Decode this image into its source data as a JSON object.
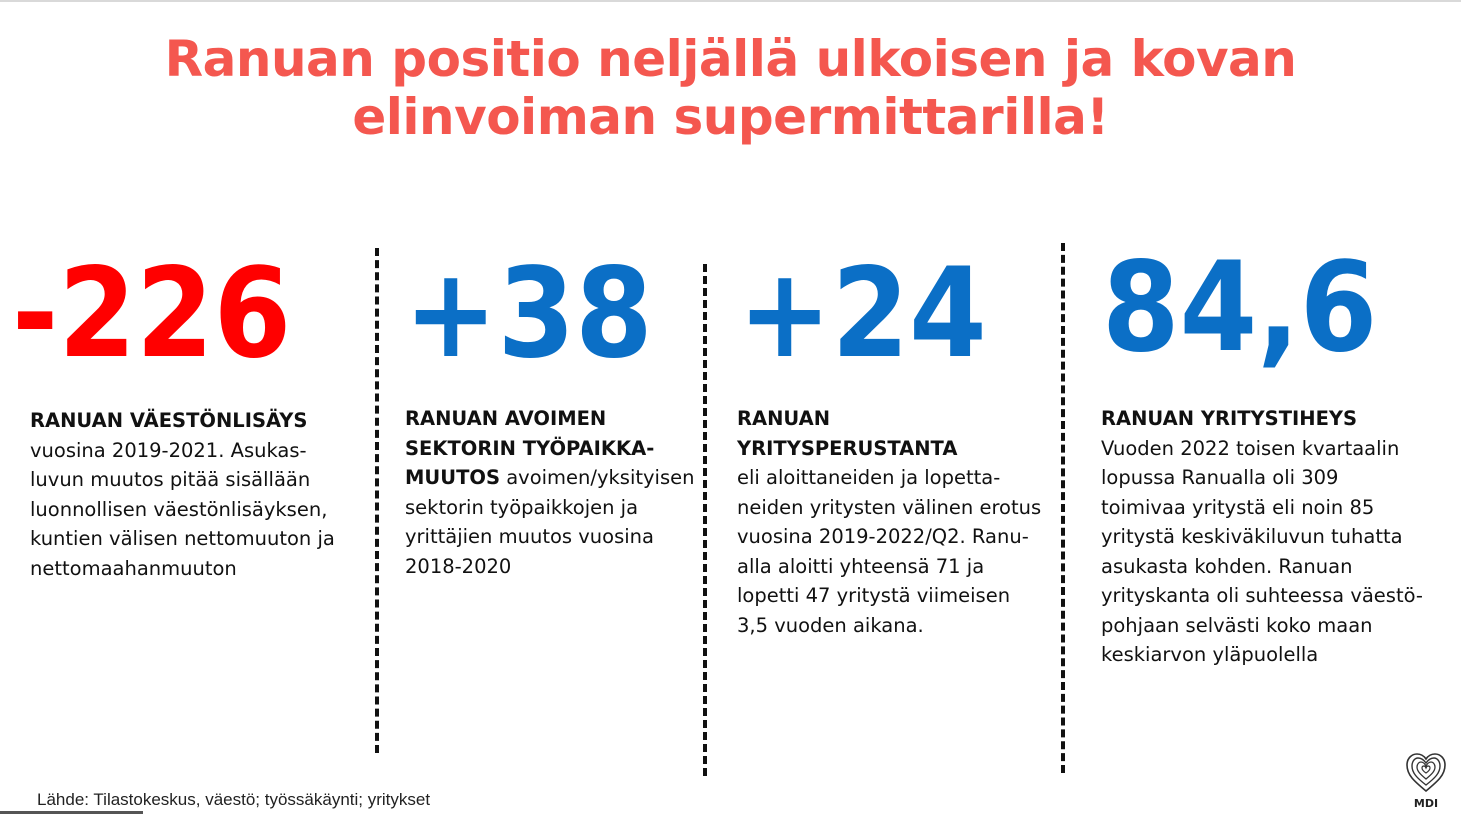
{
  "title": {
    "line1": "Ranuan positio neljällä ulkoisen ja kovan",
    "line2": "elinvoiman supermittarilla!"
  },
  "metrics": [
    {
      "value": "-226",
      "color": "#ff0000",
      "heading": "RANUAN VÄESTÖNLISÄYS",
      "lines": [
        "vuosina 2019-2021. Asukas-",
        "luvun muutos pitää sisällään",
        "luonnollisen väestönlisäyksen,",
        "kuntien välisen nettomuuton ja",
        "nettomaahanmuuton"
      ]
    },
    {
      "value": "+38",
      "color": "#0b6fc6",
      "heading_lines": [
        "RANUAN AVOIMEN",
        "SEKTORIN TYÖPAIKKA-"
      ],
      "heading_tail": "MUUTOS",
      "tail_text": " avoimen/yksityisen",
      "lines": [
        "sektorin työpaikkojen ja",
        "yrittäjien muutos vuosina",
        "2018-2020"
      ]
    },
    {
      "value": "+24",
      "color": "#0b6fc6",
      "heading": "RANUAN YRITYSPERUSTANTA",
      "lines": [
        "eli aloittaneiden ja lopetta-",
        "neiden yritysten välinen erotus",
        "vuosina 2019-2022/Q2. Ranu-",
        "alla aloitti yhteensä 71 ja",
        "lopetti 47 yritystä viimeisen",
        "3,5 vuoden aikana."
      ]
    },
    {
      "value": "84,6",
      "color": "#0b6fc6",
      "heading": "RANUAN YRITYSTIHEYS",
      "lines": [
        "Vuoden 2022 toisen kvartaalin",
        "lopussa Ranualla oli 309",
        "toimivaa yritystä eli noin 85",
        "yritystä keskiväkiluvun tuhatta",
        "asukasta kohden. Ranuan",
        "yrityskanta oli suhteessa väestö-",
        "pohjaan selvästi koko maan",
        "keskiarvon yläpuolella"
      ]
    }
  ],
  "source": "Lähde: Tilastokeskus,  väestö; työssäkäynti; yritykset",
  "logo": {
    "icon": "fingerprint-heart-icon",
    "text": "MDI"
  }
}
